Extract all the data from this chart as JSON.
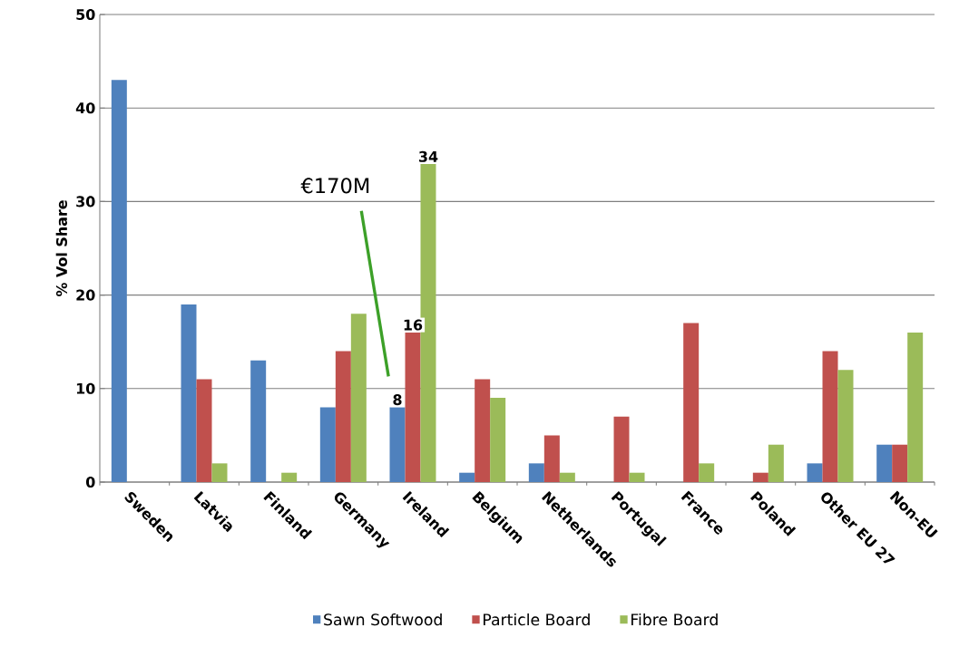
{
  "chart_data": {
    "type": "bar",
    "ylabel": "% Vol Share",
    "categories": [
      "Sweden",
      "Latvia",
      "Finland",
      "Germany",
      "Ireland",
      "Belgium",
      "Netherlands",
      "Portugal",
      "France",
      "Poland",
      "Other EU 27",
      "Non-EU"
    ],
    "series": [
      {
        "name": "Sawn Softwood",
        "color": "#4f81bd",
        "values": [
          43,
          19,
          13,
          8,
          8,
          1,
          2,
          null,
          null,
          null,
          2,
          4
        ],
        "value_labels": [
          null,
          null,
          null,
          null,
          "8",
          null,
          null,
          null,
          null,
          null,
          null,
          null
        ]
      },
      {
        "name": "Particle Board",
        "color": "#c0504d",
        "values": [
          null,
          11,
          null,
          14,
          16,
          11,
          5,
          7,
          17,
          1,
          14,
          4
        ],
        "value_labels": [
          null,
          null,
          null,
          null,
          "16",
          null,
          null,
          null,
          null,
          null,
          null,
          null
        ]
      },
      {
        "name": "Fibre Board",
        "color": "#9bbb59",
        "values": [
          null,
          2,
          1,
          18,
          34,
          9,
          1,
          1,
          2,
          4,
          12,
          16
        ],
        "value_labels": [
          null,
          null,
          null,
          null,
          "34",
          null,
          null,
          null,
          null,
          null,
          null,
          null
        ]
      }
    ],
    "annotations": [
      "€170M"
    ],
    "ylim": [
      0,
      50
    ],
    "yticks": [
      0,
      10,
      20,
      30,
      40,
      50
    ],
    "grid": "y",
    "legend": "bottom"
  }
}
